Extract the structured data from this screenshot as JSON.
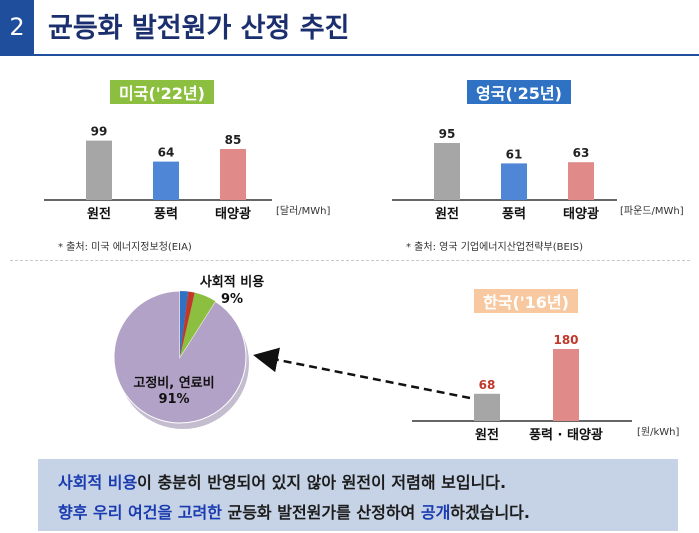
{
  "header": {
    "number": "2",
    "title": "균등화 발전원가 산정 추진"
  },
  "colors": {
    "nuclear": "#a6a6a6",
    "wind": "#4f86d6",
    "solar": "#e08a8a",
    "pie_main": "#b3a2c7",
    "pie_green": "#8cbf3f",
    "pie_red": "#c0392b",
    "pie_blue": "#2f72c4"
  },
  "chart_data": [
    {
      "type": "bar",
      "title": "미국('22년)",
      "categories": [
        "원전",
        "풍력",
        "태양광"
      ],
      "values": [
        99,
        64,
        85
      ],
      "unit": "[달러/MWh]",
      "source": "* 출처: 미국 에너지정보청(EIA)"
    },
    {
      "type": "bar",
      "title": "영국('25년)",
      "categories": [
        "원전",
        "풍력",
        "태양광"
      ],
      "values": [
        95,
        61,
        63
      ],
      "unit": "[파운드/MWh]",
      "source": "* 출처: 영국 기업에너지산업전략부(BEIS)"
    },
    {
      "type": "bar",
      "title": "한국('16년)",
      "categories": [
        "원전",
        "풍력 · 태양광"
      ],
      "values": [
        68,
        180
      ],
      "unit": "[원/kWh]"
    },
    {
      "type": "pie",
      "slices": [
        {
          "label": "고정비, 연료비",
          "percent_label": "91%",
          "value": 91
        },
        {
          "label": "사회적 비용",
          "percent_label": "9%",
          "value": 9
        }
      ]
    }
  ],
  "bottom": {
    "line1_highlight": "사회적 비용",
    "line1_rest": "이 충분히 반영되어 있지 않아 원전이 저렴해 보입니다.",
    "line2_part1": "향후 우리 여건을 고려한",
    "line2_part2": " 균등화 발전원가를 산정하여 ",
    "line2_part3": "공개",
    "line2_part4": "하겠습니다."
  }
}
